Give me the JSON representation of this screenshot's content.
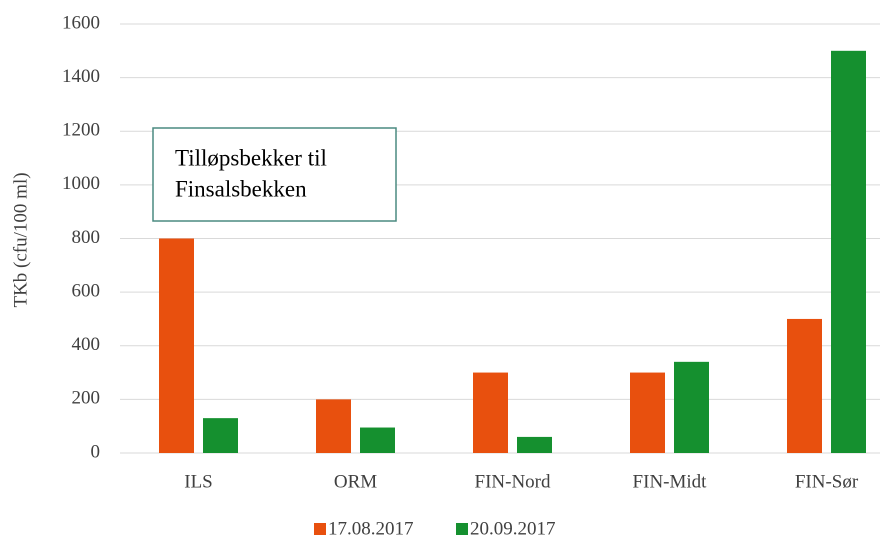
{
  "chart_data": {
    "type": "bar",
    "y_label": "TKb (cfu/100 ml)",
    "annotation": [
      "Tilløpsbekker til",
      "Finsalsbekken"
    ],
    "categories": [
      "ILS",
      "ORM",
      "FIN-Nord",
      "FIN-Midt",
      "FIN-Sør"
    ],
    "series": [
      {
        "name": "17.08.2017",
        "color": "#e8500e",
        "values": [
          800,
          200,
          300,
          300,
          500
        ]
      },
      {
        "name": "20.09.2017",
        "color": "#15902f",
        "values": [
          130,
          95,
          60,
          340,
          1500
        ]
      }
    ],
    "ylim": [
      0,
      1600
    ],
    "yticks": [
      0,
      200,
      400,
      600,
      800,
      1000,
      1200,
      1400,
      1600
    ],
    "grid": true,
    "legend": "bottom"
  }
}
